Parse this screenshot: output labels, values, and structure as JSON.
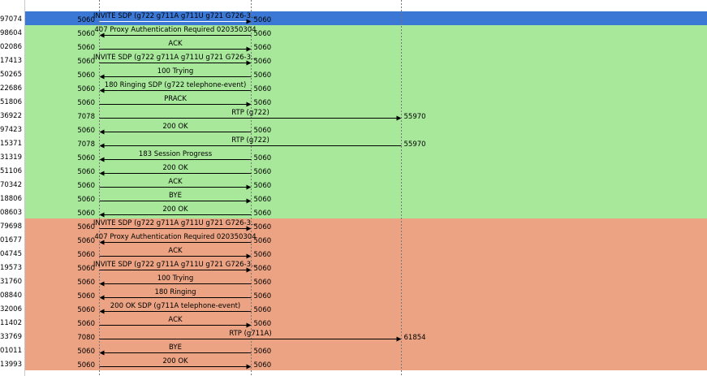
{
  "calls": [
    {
      "color": "#a8e89b",
      "rows": [
        {
          "time": "97074",
          "left_port": "5060",
          "label": "INVITE SDP (g722 g711A g711U g721 G726-3...",
          "right_port": "5060",
          "dir": "right",
          "end": 1
        },
        {
          "time": "98604",
          "left_port": "5060",
          "label": "407 Proxy Authentication Required 020350304",
          "right_port": "5060",
          "dir": "left",
          "end": 1
        },
        {
          "time": "02086",
          "left_port": "5060",
          "label": "ACK",
          "right_port": "5060",
          "dir": "right",
          "end": 1
        },
        {
          "time": "17413",
          "left_port": "5060",
          "label": "INVITE SDP (g722 g711A g711U g721 G726-3...",
          "right_port": "5060",
          "dir": "right",
          "end": 1
        },
        {
          "time": "50265",
          "left_port": "5060",
          "label": "100 Trying",
          "right_port": "5060",
          "dir": "left",
          "end": 1
        },
        {
          "time": "22686",
          "left_port": "5060",
          "label": "180 Ringing SDP (g722 telephone-event)",
          "right_port": "5060",
          "dir": "left",
          "end": 1
        },
        {
          "time": "51806",
          "left_port": "5060",
          "label": "PRACK",
          "right_port": "5060",
          "dir": "right",
          "end": 1
        },
        {
          "time": "36922",
          "left_port": "7078",
          "label": "RTP (g722)",
          "right_port": "55970",
          "dir": "right",
          "end": 2
        },
        {
          "time": "97423",
          "left_port": "5060",
          "label": "200 OK",
          "right_port": "5060",
          "dir": "left",
          "end": 1
        },
        {
          "time": "15371",
          "left_port": "7078",
          "label": "RTP (g722)",
          "right_port": "55970",
          "dir": "left",
          "end": 2
        },
        {
          "time": "31319",
          "left_port": "5060",
          "label": "183 Session Progress",
          "right_port": "5060",
          "dir": "left",
          "end": 1
        },
        {
          "time": "51106",
          "left_port": "5060",
          "label": "200 OK",
          "right_port": "5060",
          "dir": "left",
          "end": 1
        },
        {
          "time": "70342",
          "left_port": "5060",
          "label": "ACK",
          "right_port": "5060",
          "dir": "right",
          "end": 1
        },
        {
          "time": "18806",
          "left_port": "5060",
          "label": "BYE",
          "right_port": "5060",
          "dir": "right",
          "end": 1
        },
        {
          "time": "08603",
          "left_port": "5060",
          "label": "200 OK",
          "right_port": "5060",
          "dir": "left",
          "end": 1
        }
      ]
    },
    {
      "color": "#eba383",
      "rows": [
        {
          "time": "79698",
          "left_port": "5060",
          "label": "INVITE SDP (g722 g711A g711U g721 G726-3...",
          "right_port": "5060",
          "dir": "right",
          "end": 1
        },
        {
          "time": "01677",
          "left_port": "5060",
          "label": "407 Proxy Authentication Required 020350304",
          "right_port": "5060",
          "dir": "left",
          "end": 1
        },
        {
          "time": "04745",
          "left_port": "5060",
          "label": "ACK",
          "right_port": "5060",
          "dir": "right",
          "end": 1
        },
        {
          "time": "19573",
          "left_port": "5060",
          "label": "INVITE SDP (g722 g711A g711U g721 G726-3...",
          "right_port": "5060",
          "dir": "right",
          "end": 1
        },
        {
          "time": "31760",
          "left_port": "5060",
          "label": "100 Trying",
          "right_port": "5060",
          "dir": "left",
          "end": 1
        },
        {
          "time": "08840",
          "left_port": "5060",
          "label": "180 Ringing",
          "right_port": "5060",
          "dir": "left",
          "end": 1
        },
        {
          "time": "32006",
          "left_port": "5060",
          "label": "200 OK SDP (g711A telephone-event)",
          "right_port": "5060",
          "dir": "left",
          "end": 1
        },
        {
          "time": "11402",
          "left_port": "5060",
          "label": "ACK",
          "right_port": "5060",
          "dir": "right",
          "end": 1
        },
        {
          "time": "33769",
          "left_port": "7080",
          "label": "RTP (g711A)",
          "right_port": "61854",
          "dir": "right",
          "end": 2
        },
        {
          "time": "01011",
          "left_port": "5060",
          "label": "BYE",
          "right_port": "5060",
          "dir": "left",
          "end": 1
        },
        {
          "time": "13993",
          "left_port": "5060",
          "label": "200 OK",
          "right_port": "5060",
          "dir": "right",
          "end": 1
        }
      ]
    }
  ]
}
